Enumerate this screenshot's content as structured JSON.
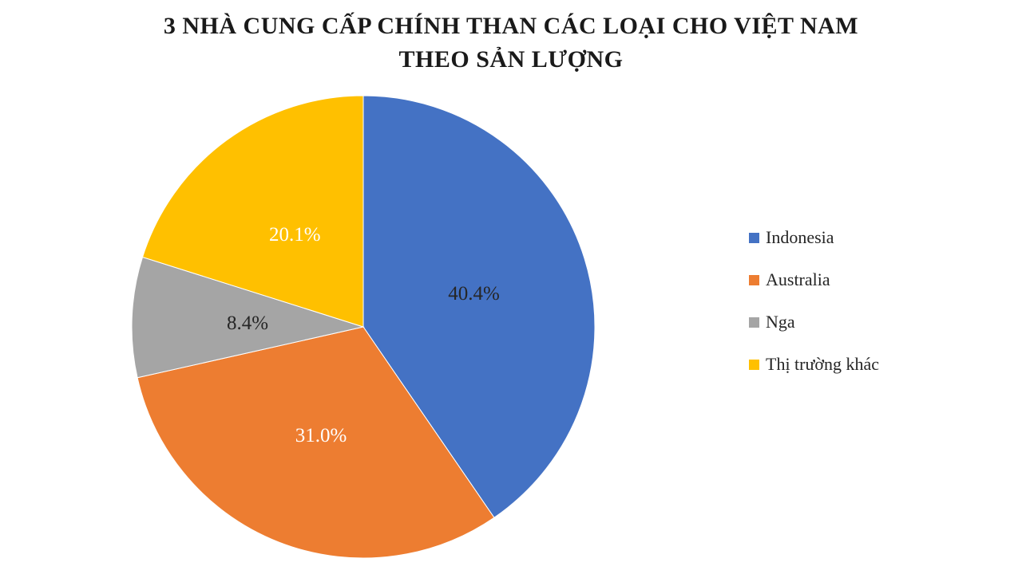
{
  "title": {
    "line1": "3 NHÀ CUNG CẤP CHÍNH THAN CÁC LOẠI CHO VIỆT NAM",
    "line2": "THEO SẢN LƯỢNG"
  },
  "chart_data": {
    "type": "pie",
    "title": "3 NHÀ CUNG CẤP CHÍNH THAN CÁC LOẠI CHO VIỆT NAM THEO SẢN LƯỢNG",
    "start_angle_deg": 0,
    "direction": "clockwise",
    "legend_position": "right",
    "slices": [
      {
        "label": "Indonesia",
        "value": 40.4,
        "display": "40.4%",
        "color": "#4472C4",
        "label_color": "#262626"
      },
      {
        "label": "Australia",
        "value": 31.0,
        "display": "31.0%",
        "color": "#ED7D31",
        "label_color": "#FFFFFF"
      },
      {
        "label": "Nga",
        "value": 8.4,
        "display": "8.4%",
        "color": "#A5A5A5",
        "label_color": "#262626"
      },
      {
        "label": "Thị trường khác",
        "value": 20.1,
        "display": "20.1%",
        "color": "#FFC000",
        "label_color": "#FFFFFF"
      }
    ]
  }
}
